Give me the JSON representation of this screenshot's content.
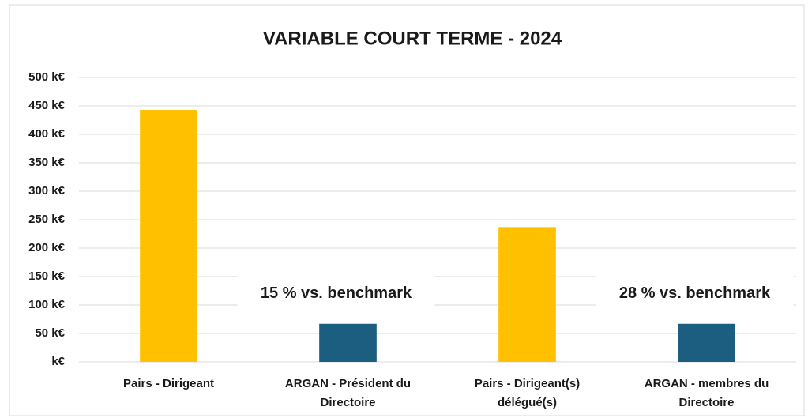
{
  "chart_data": {
    "type": "bar",
    "title": "VARIABLE COURT TERME - 2024",
    "categories": [
      "Pairs - Dirigeant",
      "ARGAN - Président du Directoire",
      "Pairs - Dirigeant(s) délégué(s)",
      "ARGAN - membres du Directoire"
    ],
    "values": [
      443,
      67,
      237,
      67
    ],
    "colors": [
      "#ffc000",
      "#1b5e80",
      "#ffc000",
      "#1b5e80"
    ],
    "ylim": [
      0,
      500
    ],
    "yticks": [
      {
        "value": 0,
        "label": "k€"
      },
      {
        "value": 50,
        "label": "50 k€"
      },
      {
        "value": 100,
        "label": "100 k€"
      },
      {
        "value": 150,
        "label": "150 k€"
      },
      {
        "value": 200,
        "label": "200 k€"
      },
      {
        "value": 250,
        "label": "250 k€"
      },
      {
        "value": 300,
        "label": "300 k€"
      },
      {
        "value": 350,
        "label": "350 k€"
      },
      {
        "value": 400,
        "label": "400 k€"
      },
      {
        "value": 450,
        "label": "450 k€"
      },
      {
        "value": 500,
        "label": "500 k€"
      }
    ],
    "grid": true,
    "annotations": [
      "15 % vs. benchmark",
      "28 % vs. benchmark"
    ]
  }
}
